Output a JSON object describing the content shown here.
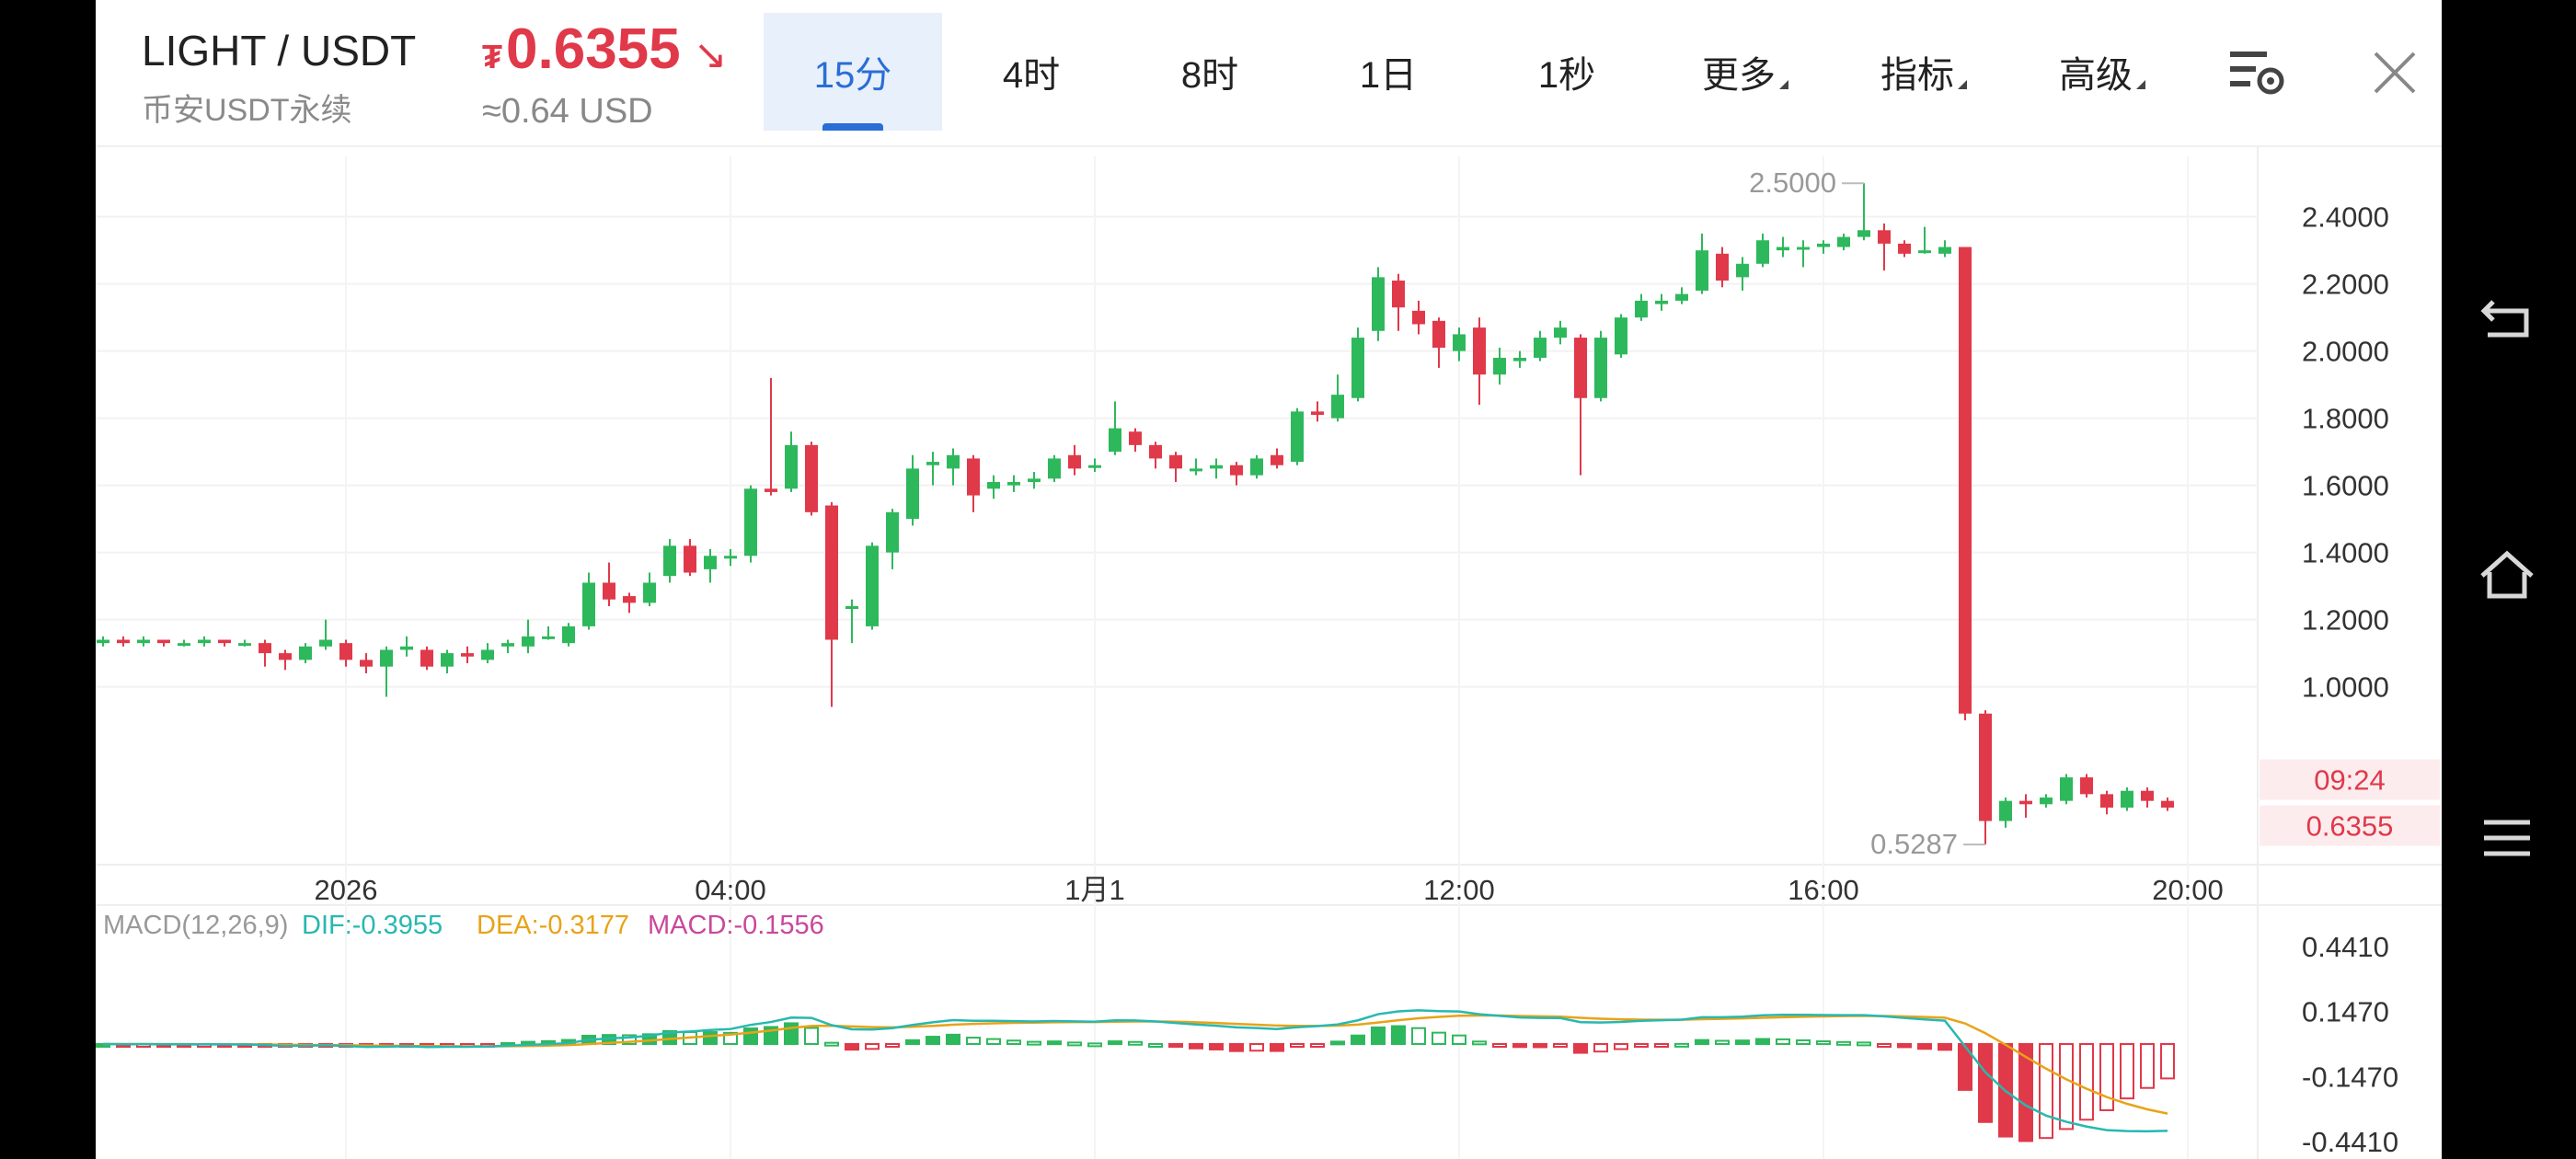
{
  "header": {
    "pair": "LIGHT / USDT",
    "exchange": "币安USDT永续",
    "price": "0.6355",
    "currency_symbol": "₮",
    "approx_usd": "≈0.64 USD",
    "price_color": "#e0394a"
  },
  "tabs": [
    {
      "label": "15分",
      "active": true
    },
    {
      "label": "4时"
    },
    {
      "label": "8时"
    },
    {
      "label": "1日"
    },
    {
      "label": "1秒"
    },
    {
      "label": "更多",
      "dropdown": true
    },
    {
      "label": "指标",
      "dropdown": true
    },
    {
      "label": "高级",
      "dropdown": true
    }
  ],
  "icons": {
    "settings": "chart-settings-icon",
    "close": "close-icon"
  },
  "chart_data": {
    "type": "candlestick",
    "price_axis": {
      "ticks": [
        "2.4000",
        "2.2000",
        "2.0000",
        "1.8000",
        "1.6000",
        "1.4000",
        "1.2000",
        "1.0000"
      ],
      "range": [
        0.47,
        2.58
      ]
    },
    "time_axis": [
      "2026",
      "04:00",
      "1月1",
      "12:00",
      "16:00",
      "20:00"
    ],
    "high_label": "2.5000",
    "low_label": "0.5287",
    "countdown": "09:24",
    "last_price": "0.6355",
    "up_color": "#2eb85c",
    "down_color": "#e0394a",
    "candles": [
      [
        1.13,
        1.14,
        1.15,
        1.12
      ],
      [
        1.14,
        1.13,
        1.15,
        1.12
      ],
      [
        1.13,
        1.14,
        1.15,
        1.12
      ],
      [
        1.14,
        1.13,
        1.14,
        1.12
      ],
      [
        1.13,
        1.13,
        1.14,
        1.12
      ],
      [
        1.13,
        1.14,
        1.15,
        1.12
      ],
      [
        1.14,
        1.13,
        1.14,
        1.12
      ],
      [
        1.13,
        1.13,
        1.14,
        1.12
      ],
      [
        1.13,
        1.1,
        1.14,
        1.06
      ],
      [
        1.1,
        1.08,
        1.11,
        1.05
      ],
      [
        1.08,
        1.12,
        1.13,
        1.07
      ],
      [
        1.12,
        1.14,
        1.2,
        1.11
      ],
      [
        1.13,
        1.08,
        1.14,
        1.06
      ],
      [
        1.08,
        1.06,
        1.1,
        1.04
      ],
      [
        1.06,
        1.11,
        1.12,
        0.97
      ],
      [
        1.11,
        1.12,
        1.15,
        1.09
      ],
      [
        1.11,
        1.06,
        1.12,
        1.05
      ],
      [
        1.06,
        1.1,
        1.11,
        1.04
      ],
      [
        1.1,
        1.09,
        1.12,
        1.07
      ],
      [
        1.08,
        1.11,
        1.13,
        1.07
      ],
      [
        1.12,
        1.13,
        1.14,
        1.1
      ],
      [
        1.12,
        1.15,
        1.2,
        1.1
      ],
      [
        1.15,
        1.15,
        1.18,
        1.14
      ],
      [
        1.13,
        1.18,
        1.19,
        1.12
      ],
      [
        1.18,
        1.31,
        1.34,
        1.17
      ],
      [
        1.31,
        1.26,
        1.37,
        1.24
      ],
      [
        1.27,
        1.25,
        1.28,
        1.22
      ],
      [
        1.25,
        1.31,
        1.34,
        1.24
      ],
      [
        1.33,
        1.42,
        1.44,
        1.31
      ],
      [
        1.42,
        1.34,
        1.44,
        1.33
      ],
      [
        1.35,
        1.39,
        1.41,
        1.31
      ],
      [
        1.39,
        1.39,
        1.41,
        1.36
      ],
      [
        1.39,
        1.59,
        1.6,
        1.37
      ],
      [
        1.59,
        1.58,
        1.92,
        1.57
      ],
      [
        1.59,
        1.72,
        1.76,
        1.58
      ],
      [
        1.72,
        1.52,
        1.73,
        1.51
      ],
      [
        1.54,
        1.14,
        1.55,
        0.94
      ],
      [
        1.24,
        1.24,
        1.26,
        1.13
      ],
      [
        1.18,
        1.42,
        1.43,
        1.17
      ],
      [
        1.4,
        1.52,
        1.53,
        1.35
      ],
      [
        1.5,
        1.65,
        1.69,
        1.48
      ],
      [
        1.66,
        1.67,
        1.7,
        1.6
      ],
      [
        1.65,
        1.69,
        1.71,
        1.6
      ],
      [
        1.68,
        1.57,
        1.69,
        1.52
      ],
      [
        1.59,
        1.61,
        1.63,
        1.56
      ],
      [
        1.6,
        1.61,
        1.63,
        1.58
      ],
      [
        1.61,
        1.62,
        1.64,
        1.59
      ],
      [
        1.62,
        1.68,
        1.69,
        1.61
      ],
      [
        1.69,
        1.65,
        1.72,
        1.63
      ],
      [
        1.66,
        1.66,
        1.68,
        1.64
      ],
      [
        1.7,
        1.77,
        1.85,
        1.69
      ],
      [
        1.76,
        1.72,
        1.77,
        1.7
      ],
      [
        1.72,
        1.68,
        1.73,
        1.65
      ],
      [
        1.69,
        1.65,
        1.7,
        1.61
      ],
      [
        1.65,
        1.65,
        1.68,
        1.63
      ],
      [
        1.65,
        1.66,
        1.68,
        1.62
      ],
      [
        1.66,
        1.63,
        1.67,
        1.6
      ],
      [
        1.63,
        1.68,
        1.69,
        1.62
      ],
      [
        1.69,
        1.66,
        1.71,
        1.65
      ],
      [
        1.67,
        1.82,
        1.83,
        1.66
      ],
      [
        1.82,
        1.81,
        1.85,
        1.79
      ],
      [
        1.8,
        1.87,
        1.93,
        1.79
      ],
      [
        1.86,
        2.04,
        2.07,
        1.85
      ],
      [
        2.06,
        2.22,
        2.25,
        2.03
      ],
      [
        2.21,
        2.13,
        2.23,
        2.06
      ],
      [
        2.12,
        2.08,
        2.15,
        2.05
      ],
      [
        2.09,
        2.01,
        2.1,
        1.95
      ],
      [
        2.0,
        2.05,
        2.07,
        1.97
      ],
      [
        2.07,
        1.93,
        2.1,
        1.84
      ],
      [
        1.93,
        1.98,
        2.01,
        1.9
      ],
      [
        1.97,
        1.98,
        2.0,
        1.95
      ],
      [
        1.98,
        2.04,
        2.06,
        1.97
      ],
      [
        2.04,
        2.07,
        2.09,
        2.02
      ],
      [
        2.04,
        1.86,
        2.05,
        1.63
      ],
      [
        1.86,
        2.04,
        2.06,
        1.85
      ],
      [
        1.99,
        2.1,
        2.11,
        1.98
      ],
      [
        2.1,
        2.15,
        2.17,
        2.09
      ],
      [
        2.14,
        2.15,
        2.17,
        2.12
      ],
      [
        2.15,
        2.17,
        2.19,
        2.14
      ],
      [
        2.18,
        2.3,
        2.35,
        2.17
      ],
      [
        2.29,
        2.21,
        2.31,
        2.19
      ],
      [
        2.22,
        2.26,
        2.28,
        2.18
      ],
      [
        2.26,
        2.33,
        2.35,
        2.25
      ],
      [
        2.3,
        2.31,
        2.34,
        2.28
      ],
      [
        2.31,
        2.31,
        2.33,
        2.25
      ],
      [
        2.31,
        2.32,
        2.33,
        2.29
      ],
      [
        2.31,
        2.34,
        2.35,
        2.3
      ],
      [
        2.34,
        2.36,
        2.5,
        2.33
      ],
      [
        2.36,
        2.32,
        2.38,
        2.24
      ],
      [
        2.32,
        2.29,
        2.33,
        2.28
      ],
      [
        2.3,
        2.3,
        2.37,
        2.29
      ],
      [
        2.29,
        2.31,
        2.33,
        2.28
      ],
      [
        2.31,
        0.92,
        2.31,
        0.9
      ],
      [
        0.92,
        0.6,
        0.93,
        0.53
      ],
      [
        0.6,
        0.66,
        0.67,
        0.58
      ],
      [
        0.66,
        0.65,
        0.68,
        0.61
      ],
      [
        0.65,
        0.67,
        0.68,
        0.64
      ],
      [
        0.66,
        0.73,
        0.74,
        0.65
      ],
      [
        0.73,
        0.68,
        0.74,
        0.67
      ],
      [
        0.68,
        0.64,
        0.69,
        0.62
      ],
      [
        0.64,
        0.69,
        0.7,
        0.63
      ],
      [
        0.69,
        0.66,
        0.7,
        0.64
      ],
      [
        0.66,
        0.64,
        0.67,
        0.63
      ]
    ],
    "macd": {
      "label": "MACD(12,26,9)",
      "dif_label": "DIF:-0.3955",
      "dea_label": "DEA:-0.3177",
      "macd_label": "MACD:-0.1556",
      "dif_color": "#27b8b0",
      "dea_color": "#e8a317",
      "macd_color": "#c9479c",
      "ticks": [
        "0.4410",
        "0.1470",
        "-0.1470",
        "-0.4410"
      ],
      "range": [
        -0.52,
        0.52
      ]
    }
  }
}
